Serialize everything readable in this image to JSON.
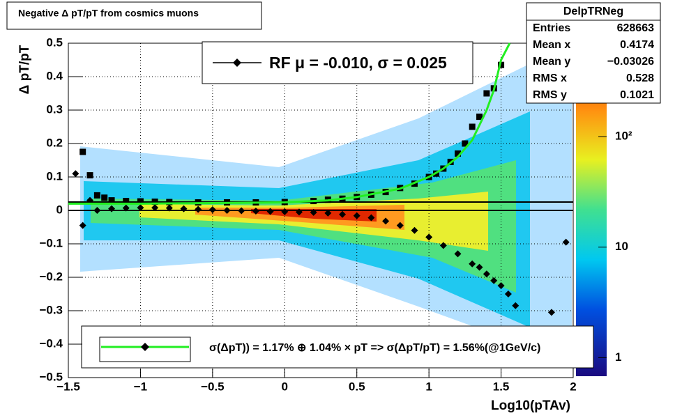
{
  "chart_data": {
    "type": "scatter",
    "title": "Negative Δ pT/pT from cosmics muons",
    "xlabel": "Log10(pTAv)",
    "ylabel": "Δ pT/pT",
    "xlim": [
      -1.5,
      2
    ],
    "ylim": [
      -0.5,
      0.5
    ],
    "xticks": [
      {
        "value": -1.5,
        "label": "−1.5"
      },
      {
        "value": -1,
        "label": "−1"
      },
      {
        "value": -0.5,
        "label": "−0.5"
      },
      0,
      0.5,
      1,
      1.5,
      2
    ],
    "yticks": [
      {
        "value": -0.5,
        "label": "−0.5"
      },
      {
        "value": -0.4,
        "label": "−0.4"
      },
      {
        "value": -0.3,
        "label": "−0.3"
      },
      {
        "value": -0.2,
        "label": "−0.2"
      },
      {
        "value": -0.1,
        "label": "−0.1"
      },
      0,
      0.1,
      0.2,
      0.3,
      0.4,
      0.5
    ],
    "grid": true,
    "series": [
      {
        "marker": "diamond",
        "color": "#000000",
        "x": [
          -1.45,
          -1.4,
          -1.35,
          -1.3,
          -1.2,
          -1.1,
          -1.0,
          -0.9,
          -0.8,
          -0.7,
          -0.6,
          -0.5,
          -0.4,
          -0.3,
          -0.2,
          -0.1,
          0,
          0.1,
          0.2,
          0.3,
          0.4,
          0.5,
          0.6,
          0.7,
          0.8,
          0.9,
          1.0,
          1.1,
          1.2,
          1.3,
          1.35,
          1.4,
          1.45,
          1.5,
          1.55,
          1.6,
          1.85,
          1.95
        ],
        "values": [
          0.11,
          -0.045,
          0.03,
          0.0,
          0.005,
          0.007,
          0.008,
          0.008,
          0.007,
          0.005,
          0.003,
          0.002,
          0.0,
          -0.001,
          -0.002,
          -0.003,
          -0.004,
          -0.005,
          -0.006,
          -0.008,
          -0.012,
          -0.016,
          -0.022,
          -0.032,
          -0.045,
          -0.06,
          -0.08,
          -0.105,
          -0.13,
          -0.16,
          -0.17,
          -0.19,
          -0.21,
          -0.225,
          -0.25,
          -0.285,
          -0.305,
          -0.095
        ]
      },
      {
        "marker": "square",
        "color": "#000000",
        "x": [
          -1.4,
          -1.35,
          -1.3,
          -1.25,
          -1.2,
          -1.1,
          -1.0,
          -0.9,
          -0.8,
          -0.6,
          -0.4,
          -0.2,
          0,
          0.2,
          0.3,
          0.4,
          0.5,
          0.6,
          0.7,
          0.8,
          0.9,
          1.0,
          1.05,
          1.1,
          1.15,
          1.2,
          1.25,
          1.3,
          1.35,
          1.4,
          1.45,
          1.5
        ],
        "values": [
          0.175,
          0.105,
          0.045,
          0.038,
          0.03,
          0.028,
          0.027,
          0.026,
          0.025,
          0.024,
          0.024,
          0.024,
          0.025,
          0.028,
          0.032,
          0.035,
          0.04,
          0.047,
          0.055,
          0.067,
          0.08,
          0.1,
          0.11,
          0.125,
          0.145,
          0.17,
          0.2,
          0.25,
          0.28,
          0.35,
          0.365,
          0.435
        ]
      },
      {
        "marker": "line",
        "color": "#22ee22",
        "x": [
          -1.5,
          -1.0,
          -0.5,
          0,
          0.3,
          0.5,
          0.8,
          1.0,
          1.1,
          1.2,
          1.3,
          1.4,
          1.45,
          1.5,
          1.56
        ],
        "values": [
          0.02,
          0.02,
          0.022,
          0.024,
          0.03,
          0.04,
          0.065,
          0.1,
          0.125,
          0.16,
          0.21,
          0.3,
          0.36,
          0.45,
          0.5
        ]
      }
    ],
    "hlines": [
      0.025,
      0
    ],
    "legend": [
      "RF μ = -0.010, σ =   0.025",
      "σ(ΔpT)) =  1.17% ⊕  1.04% × pT => σ(ΔpT/pT) =  1.56%(@1GeV/c)"
    ],
    "colorbar": {
      "zlim": [
        0.68,
        700
      ],
      "log": true,
      "zticks": [
        1,
        10,
        {
          "value": 100,
          "label": "10²"
        }
      ]
    },
    "stats": {
      "title": "DelpTRNeg",
      "rows": [
        [
          "Entries",
          "628663"
        ],
        [
          "Mean x",
          "0.4174"
        ],
        [
          "Mean y",
          "−0.03026"
        ],
        [
          "RMS x",
          "0.528"
        ],
        [
          "RMS y",
          "0.1021"
        ]
      ]
    }
  }
}
